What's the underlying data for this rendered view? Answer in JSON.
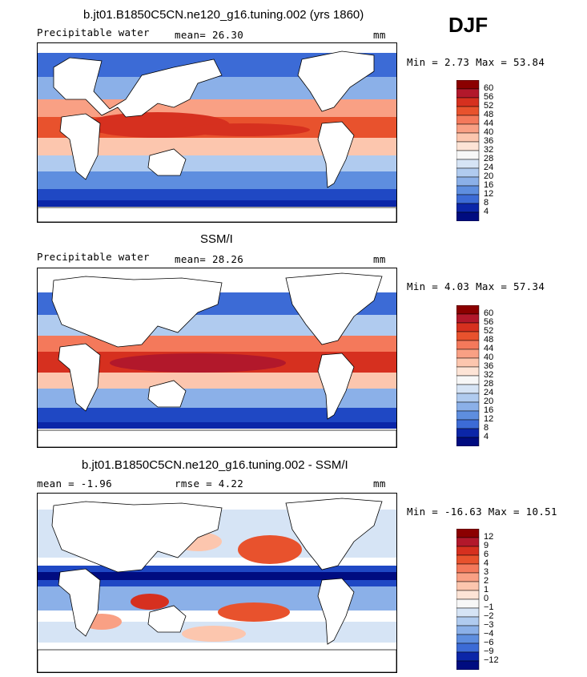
{
  "season": "DJF",
  "panels": [
    {
      "title": "b.jt01.B1850C5CN.ne120_g16.tuning.002 (yrs 1860)",
      "left_label": "Precipitable water",
      "mid_label": "mean=   26.30",
      "units": "mm",
      "minmax": "Min =   2.73 Max =  53.84",
      "colorbar_ticks": [
        "60",
        "56",
        "52",
        "48",
        "44",
        "40",
        "36",
        "32",
        "28",
        "24",
        "20",
        "16",
        "12",
        "8",
        "4"
      ]
    },
    {
      "title": "SSM/I",
      "left_label": "Precipitable water",
      "mid_label": "mean=   28.26",
      "units": "mm",
      "minmax": "Min =   4.03 Max =  57.34",
      "colorbar_ticks": [
        "60",
        "56",
        "52",
        "48",
        "44",
        "40",
        "36",
        "32",
        "28",
        "24",
        "20",
        "16",
        "12",
        "8",
        "4"
      ]
    },
    {
      "title": "b.jt01.B1850C5CN.ne120_g16.tuning.002 - SSM/I",
      "left_label": "mean =   -1.96",
      "mid_label": "rmse =   4.22",
      "units": "mm",
      "minmax": "Min = -16.63 Max =  10.51",
      "colorbar_ticks": [
        "12",
        "9",
        "6",
        "4",
        "3",
        "2",
        "1",
        "0",
        "−1",
        "−2",
        "−3",
        "−4",
        "−6",
        "−9",
        "−12"
      ]
    }
  ],
  "colors": {
    "scale": [
      "#8b0000",
      "#b2182b",
      "#d6301f",
      "#e8522d",
      "#f4795b",
      "#f9a084",
      "#fcc6ae",
      "#fde4d6",
      "#f7f7f7",
      "#d6e4f5",
      "#b0cbef",
      "#8bb0e8",
      "#5e8edf",
      "#3c6bd6",
      "#1f48c4",
      "#0b26a8",
      "#000c80"
    ]
  }
}
